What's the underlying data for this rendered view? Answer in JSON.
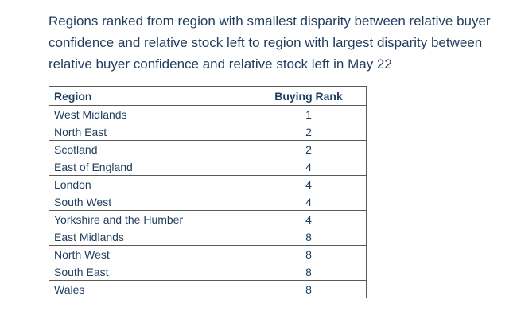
{
  "title": "Regions ranked from region with smallest disparity between relative buyer confidence and relative stock left to region with largest disparity between relative buyer confidence and relative stock left in May 22",
  "table": {
    "headers": [
      "Region",
      "Buying Rank"
    ],
    "rows": [
      [
        "West Midlands",
        "1"
      ],
      [
        "North East",
        "2"
      ],
      [
        "Scotland",
        "2"
      ],
      [
        "East of England",
        "4"
      ],
      [
        "London",
        "4"
      ],
      [
        "South West",
        "4"
      ],
      [
        "Yorkshire and the Humber",
        "4"
      ],
      [
        "East Midlands",
        "8"
      ],
      [
        "North West",
        "8"
      ],
      [
        "South East",
        "8"
      ],
      [
        "Wales",
        "8"
      ]
    ]
  },
  "colors": {
    "text": "#1f3d5e",
    "border": "#5a5a5a",
    "background": "#ffffff"
  }
}
